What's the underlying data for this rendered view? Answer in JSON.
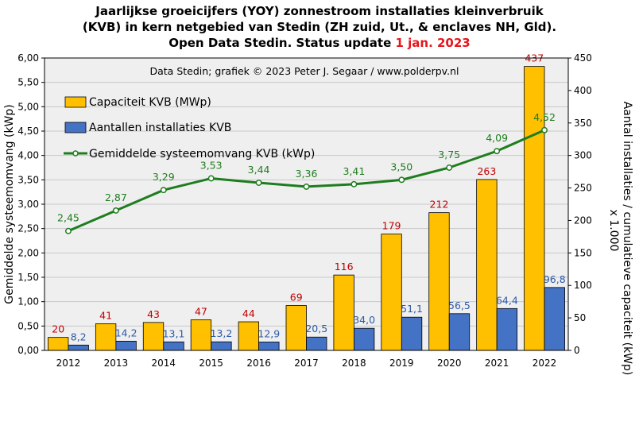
{
  "title": {
    "line1": "Jaarlijkse groeicijfers (YOY) zonnestroom installaties kleinverbruik",
    "line2": "(KVB) in kern netgebied van Stedin (ZH zuid, Ut., & enclaves NH, Gld).",
    "line3_prefix": "Open Data Stedin. Status update ",
    "line3_date": "1 jan. 2023"
  },
  "chart_data": {
    "type": "bar",
    "credit": "Data Stedin; grafiek © 2023 Peter J. Segaar / www.polderpv.nl",
    "categories": [
      "2012",
      "2013",
      "2014",
      "2015",
      "2016",
      "2017",
      "2018",
      "2019",
      "2020",
      "2021",
      "2022"
    ],
    "series": [
      {
        "name": "Capaciteit KVB (MWp)",
        "axis": "right",
        "color": "#ffc000",
        "label_color": "#c00000",
        "values": [
          20,
          41,
          43,
          47,
          44,
          69,
          116,
          179,
          212,
          263,
          437
        ],
        "labels": [
          "20",
          "41",
          "43",
          "47",
          "44",
          "69",
          "116",
          "179",
          "212",
          "263",
          "437"
        ]
      },
      {
        "name": "Aantallen installaties KVB",
        "axis": "right",
        "color": "#4472c4",
        "label_color": "#2e5aa8",
        "values": [
          8.2,
          14.2,
          13.1,
          13.2,
          12.9,
          20.5,
          34.0,
          51.1,
          56.5,
          64.4,
          96.8
        ],
        "labels": [
          "8,2",
          "14,2",
          "13,1",
          "13,2",
          "12,9",
          "20,5",
          "34,0",
          "51,1",
          "56,5",
          "64,4",
          "96,8"
        ]
      },
      {
        "name": "Gemiddelde systeemomvang KVB (kWp)",
        "axis": "left",
        "type": "line",
        "color": "#1e7d1e",
        "label_color": "#1e7d1e",
        "values": [
          2.45,
          2.87,
          3.29,
          3.53,
          3.44,
          3.36,
          3.41,
          3.5,
          3.75,
          4.09,
          4.52
        ],
        "labels": [
          "2,45",
          "2,87",
          "3,29",
          "3,53",
          "3,44",
          "3,36",
          "3,41",
          "3,50",
          "3,75",
          "4,09",
          "4,52"
        ]
      }
    ],
    "left_axis": {
      "label": "Gemiddelde systeemomvang (kWp)",
      "ylim": [
        0,
        6
      ],
      "ticks": [
        "0,00",
        "0,50",
        "1,00",
        "1,50",
        "2,00",
        "2,50",
        "3,00",
        "3,50",
        "4,00",
        "4,50",
        "5,00",
        "5,50",
        "6,00"
      ]
    },
    "right_axis": {
      "label_line1": "Aantal installaties / cumulatieve capaciteit (kWp)",
      "label_line2": "x 1.000",
      "ylim": [
        0,
        450
      ],
      "ticks": [
        "0",
        "50",
        "100",
        "150",
        "200",
        "250",
        "300",
        "350",
        "400",
        "450"
      ]
    },
    "grid": true,
    "legend_position": "top-left",
    "plot_background": "#efefef"
  }
}
